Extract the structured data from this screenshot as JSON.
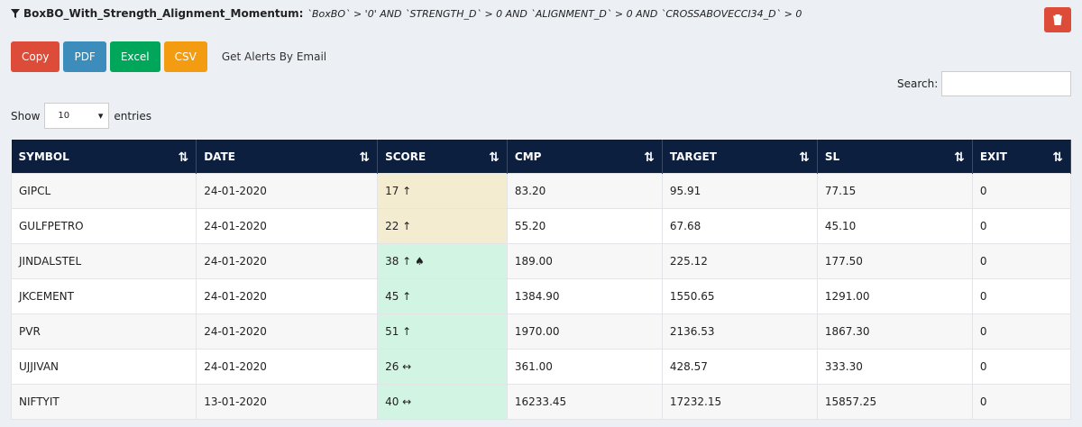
{
  "header": {
    "title": "BoxBO_With_Strength_Alignment_Momentum:",
    "query": "`BoxBO` > '0' AND `STRENGTH_D` > 0 AND `ALIGNMENT_D` > 0 AND `CROSSABOVECCI34_D` > 0"
  },
  "buttons": [
    "Copy",
    "PDF",
    "Excel",
    "CSV",
    "Get Alerts By Email"
  ],
  "search": {
    "label": "Search:"
  },
  "length": {
    "before": "Show",
    "value": "10",
    "after": "entries"
  },
  "table": {
    "columns": [
      "SYMBOL",
      "DATE",
      "SCORE",
      "CMP",
      "TARGET",
      "SL",
      "EXIT"
    ],
    "rows": [
      [
        "GIPCL",
        "24-01-2020",
        "17 ↑",
        "83.20",
        "95.91",
        "77.15",
        "0"
      ],
      [
        "GULFPETRO",
        "24-01-2020",
        "22 ↑",
        "55.20",
        "67.68",
        "45.10",
        "0"
      ],
      [
        "JINDALSTEL",
        "24-01-2020",
        "38 ↑ ♠",
        "189.00",
        "225.12",
        "177.50",
        "0"
      ],
      [
        "JKCEMENT",
        "24-01-2020",
        "45 ↑",
        "1384.90",
        "1550.65",
        "1291.00",
        "0"
      ],
      [
        "PVR",
        "24-01-2020",
        "51 ↑",
        "1970.00",
        "2136.53",
        "1867.30",
        "0"
      ],
      [
        "UJJIVAN",
        "24-01-2020",
        "26 ↔",
        "361.00",
        "428.57",
        "333.30",
        "0"
      ],
      [
        "NIFTYIT",
        "13-01-2020",
        "40 ↔",
        "16233.45",
        "17232.15",
        "15857.25",
        "0"
      ]
    ]
  }
}
